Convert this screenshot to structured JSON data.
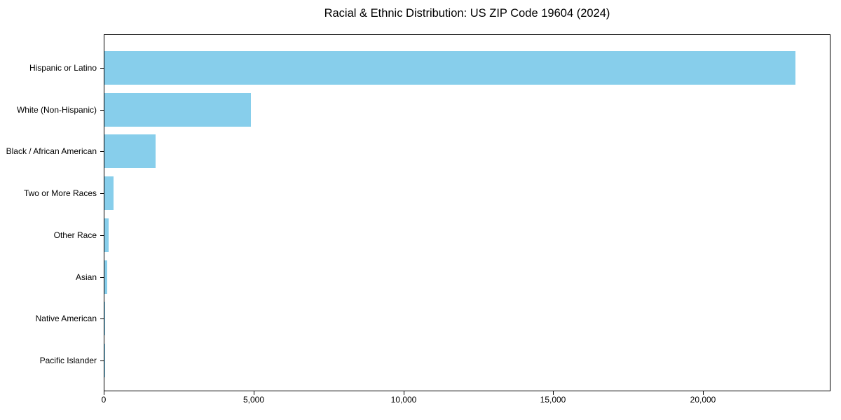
{
  "figure": {
    "background_color": "#ffffff",
    "text_color": "#000000",
    "axis_color": "#000000"
  },
  "chart_data": {
    "type": "bar",
    "orientation": "horizontal",
    "title": "Racial & Ethnic Distribution: US ZIP Code 19604 (2024)",
    "xlabel": "",
    "ylabel": "",
    "categories": [
      "Hispanic or Latino",
      "White (Non-Hispanic)",
      "Black / African American",
      "Two or More Races",
      "Other Race",
      "Asian",
      "Native American",
      "Pacific Islander"
    ],
    "values": [
      23100,
      4890,
      1710,
      300,
      140,
      100,
      15,
      5
    ],
    "bar_color": "#87CEEB",
    "xlim": [
      0,
      24250
    ],
    "x_ticks": [
      0,
      5000,
      10000,
      15000,
      20000
    ],
    "x_tick_labels": [
      "0",
      "5,000",
      "10,000",
      "15,000",
      "20,000"
    ],
    "grid": false,
    "legend": null
  }
}
